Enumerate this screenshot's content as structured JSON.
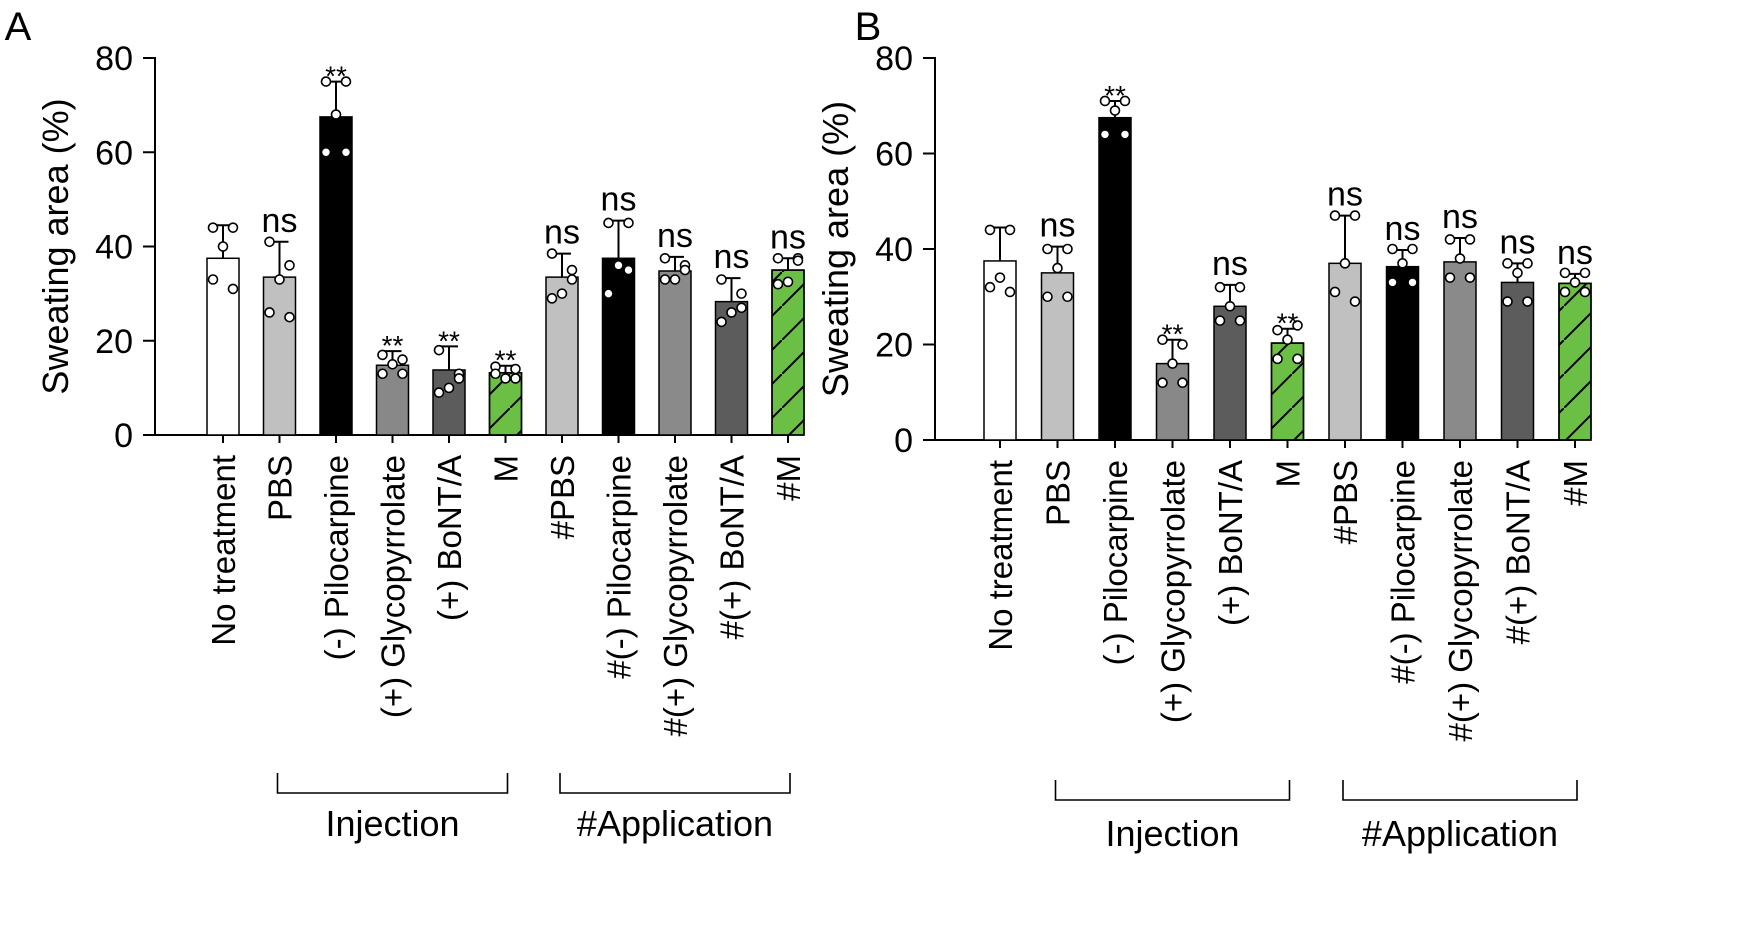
{
  "colors": {
    "white": "#ffffff",
    "light_gray": "#c0c0c0",
    "black": "#000000",
    "medium_gray": "#888888",
    "dark_gray": "#5c5c5c",
    "gray": "#8a8a8a",
    "green": "#6cbf45",
    "axis": "#000000"
  },
  "chart_data": [
    {
      "type": "bar",
      "panel_label": "A",
      "ylabel": "Sweating area (%)",
      "ylim": [
        0,
        80
      ],
      "yticks": [
        0,
        20,
        40,
        60,
        80
      ],
      "grid": false,
      "categories": [
        "No treatment",
        "PBS",
        "(-) Pilocarpine",
        "(+) Glycopyrrolate",
        "(+) BoNT/A",
        "M",
        "#PBS",
        "#(-) Pilocarpine",
        "#(+) Glycopyrrolate",
        "#(+) BoNT/A",
        "#M"
      ],
      "values": [
        37.5,
        33.5,
        67.5,
        14.8,
        13.8,
        13.2,
        33.5,
        37.5,
        34.8,
        28.3,
        35.0
      ],
      "errors": [
        7.0,
        7.5,
        7.5,
        3.0,
        5.0,
        1.5,
        5.0,
        8.0,
        3.0,
        5.0,
        2.5
      ],
      "points": [
        [
          44,
          44,
          40,
          33,
          31
        ],
        [
          41,
          36,
          33,
          26,
          25
        ],
        [
          75,
          75,
          68,
          60,
          60
        ],
        [
          17,
          16,
          15,
          13,
          13
        ],
        [
          18,
          13,
          10,
          9,
          12
        ],
        [
          14.5,
          14,
          12,
          13,
          12
        ],
        [
          38.5,
          33,
          30,
          29,
          35
        ],
        [
          45,
          45,
          36,
          30,
          35
        ],
        [
          37.5,
          36,
          33,
          33,
          35
        ],
        [
          33,
          27,
          26,
          24,
          30
        ],
        [
          37.5,
          37.5,
          32.5,
          32,
          37
        ]
      ],
      "bar_colors": [
        "white",
        "light_gray",
        "black",
        "medium_gray",
        "dark_gray",
        "green",
        "light_gray",
        "black",
        "gray",
        "dark_gray",
        "green"
      ],
      "hatched": [
        false,
        false,
        false,
        false,
        false,
        true,
        false,
        false,
        false,
        false,
        true
      ],
      "significance": [
        "",
        "ns",
        "**",
        "**",
        "**",
        "**",
        "ns",
        "ns",
        "ns",
        "ns",
        "ns"
      ],
      "groups": [
        {
          "label": "Injection",
          "from": 1,
          "to": 5
        },
        {
          "label": "#Application",
          "from": 6,
          "to": 10
        }
      ]
    },
    {
      "type": "bar",
      "panel_label": "B",
      "ylabel": "Sweating area (%)",
      "ylim": [
        0,
        80
      ],
      "yticks": [
        0,
        20,
        40,
        60,
        80
      ],
      "grid": false,
      "categories": [
        "No treatment",
        "PBS",
        "(-) Pilocarpine",
        "(+) Glycopyrrolate",
        "(+) BoNT/A",
        "M",
        "#PBS",
        "#(-) Pilocarpine",
        "#(+) Glycopyrrolate",
        "#(+) BoNT/A",
        "#M"
      ],
      "values": [
        37.5,
        35.0,
        67.5,
        16.0,
        28.0,
        20.3,
        37.0,
        36.3,
        37.3,
        33.0,
        32.8
      ],
      "errors": [
        7.0,
        5.5,
        3.5,
        5.0,
        4.5,
        3.0,
        10.0,
        3.5,
        5.0,
        4.0,
        2.0
      ],
      "points": [
        [
          44,
          44,
          34,
          32,
          31
        ],
        [
          40,
          40,
          36,
          30,
          30
        ],
        [
          71,
          71,
          69,
          64,
          64
        ],
        [
          21,
          20,
          16,
          12,
          12
        ],
        [
          32,
          32,
          28,
          25,
          25
        ],
        [
          23,
          24,
          21,
          17,
          17
        ],
        [
          47,
          47,
          37,
          31,
          29
        ],
        [
          40,
          40,
          37,
          33,
          33
        ],
        [
          42,
          42,
          38,
          34,
          34
        ],
        [
          37,
          37,
          35,
          29,
          29
        ],
        [
          35,
          35,
          33,
          31,
          31
        ]
      ],
      "bar_colors": [
        "white",
        "light_gray",
        "black",
        "medium_gray",
        "dark_gray",
        "green",
        "light_gray",
        "black",
        "gray",
        "dark_gray",
        "green"
      ],
      "hatched": [
        false,
        false,
        false,
        false,
        false,
        true,
        false,
        false,
        false,
        false,
        true
      ],
      "significance": [
        "",
        "ns",
        "**",
        "**",
        "ns",
        "**",
        "ns",
        "ns",
        "ns",
        "ns",
        "ns"
      ],
      "groups": [
        {
          "label": "Injection",
          "from": 1,
          "to": 5
        },
        {
          "label": "#Application",
          "from": 6,
          "to": 10
        }
      ]
    }
  ]
}
